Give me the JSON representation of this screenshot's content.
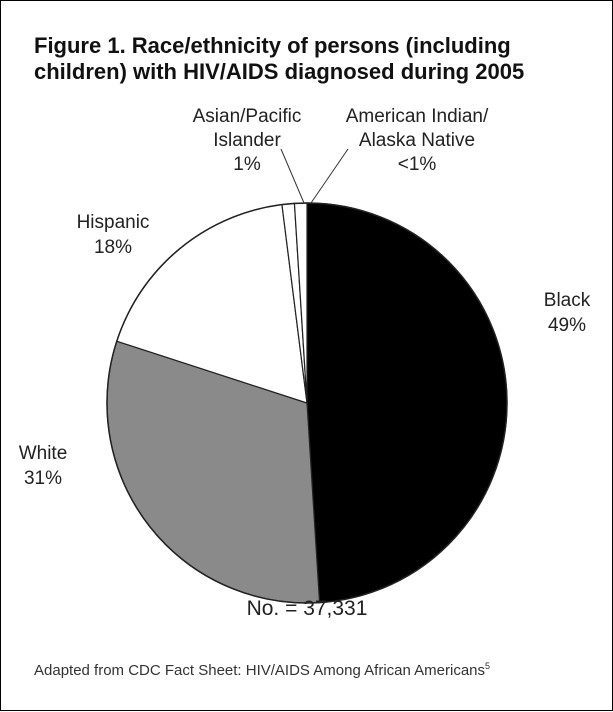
{
  "chart_data": {
    "type": "pie",
    "title_line1": "Figure 1. Race/ethnicity of persons (including",
    "title_line2": "children) with HIV/AIDS diagnosed during 2005",
    "slices": [
      {
        "name": "Black",
        "percent": 49,
        "label_line1": "Black",
        "label_line2": "49%",
        "color": "#000000"
      },
      {
        "name": "White",
        "percent": 31,
        "label_line1": "White",
        "label_line2": "31%",
        "color": "#8a8a8a"
      },
      {
        "name": "Hispanic",
        "percent": 18,
        "label_line1": "Hispanic",
        "label_line2": "18%",
        "color": "#ffffff"
      },
      {
        "name": "Asian/Pacific Islander",
        "percent": 1,
        "label_line1": "Asian/Pacific",
        "label_line2": "Islander",
        "label_line3": "1%",
        "color": "#ffffff"
      },
      {
        "name": "American Indian/Alaska Native",
        "percent": 1,
        "label_line1": "American Indian/",
        "label_line2": "Alaska Native",
        "label_line3": "<1%",
        "color": "#ffffff"
      }
    ],
    "total_label": "No. = 37,331"
  },
  "footer": {
    "text": "Adapted from CDC Fact Sheet: HIV/AIDS Among African Americans",
    "ref": "5"
  }
}
